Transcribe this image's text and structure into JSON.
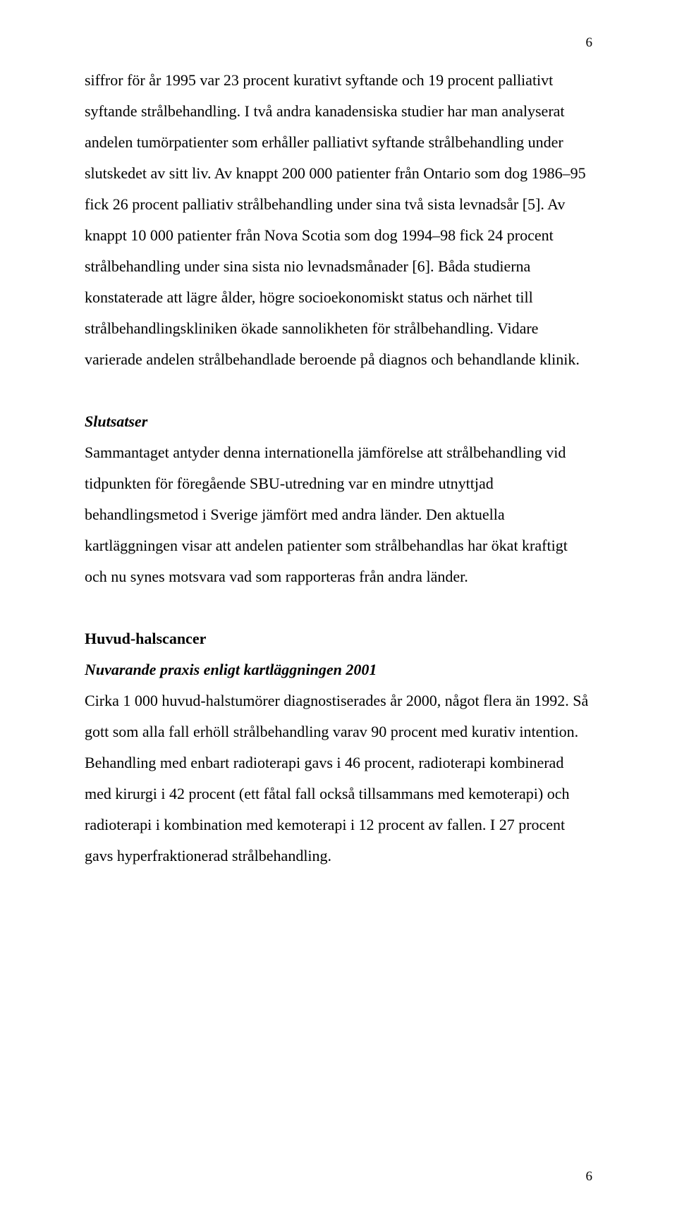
{
  "page_number_top": "6",
  "page_number_bottom": "6",
  "typography": {
    "font_family": "Times New Roman",
    "body_fontsize_pt": 16,
    "line_height": 2.0,
    "text_color": "#000000",
    "background_color": "#ffffff"
  },
  "paragraph1": "siffror för år 1995 var 23 procent kurativt syftande och 19 procent palliativt syftande strålbehandling. I två andra kanadensiska studier har man analyserat  andelen tumörpatienter som erhåller palliativt syftande strålbehandling under slutskedet av sitt liv. Av knappt 200 000 patienter från Ontario som dog 1986–95 fick 26 procent palliativ strålbehandling under sina två sista levnadsår [5]. Av knappt 10 000 patienter från Nova Scotia som dog 1994–98 fick 24 procent strålbehandling under sina sista nio levnadsmånader [6]. Båda studierna konstaterade att lägre ålder, högre socioekonomiskt status och närhet till strålbehandlingskliniken ökade sannolikheten för strålbehandling. Vidare varierade andelen strålbehandlade beroende på diagnos och behandlande klinik.",
  "slutsatser_heading": "Slutsatser",
  "paragraph2": "Sammantaget antyder denna internationella jämförelse att strålbehandling vid tidpunkten för föregående SBU-utredning var en mindre utnyttjad behandlingsmetod i Sverige jämfört med andra länder. Den aktuella kartläggningen visar att andelen patienter som strålbehandlas har ökat kraftigt och nu synes motsvara vad som rapporteras från andra länder.",
  "huvud_heading": "Huvud-halscancer",
  "huvud_subheading": "Nuvarande praxis enligt kartläggningen 2001",
  "paragraph3": "Cirka 1 000 huvud-halstumörer diagnostiserades år 2000, något flera än 1992. Så gott som alla fall erhöll strålbehandling varav 90 procent med kurativ intention. Behandling med enbart radioterapi gavs i 46 procent, radioterapi kombinerad med kirurgi i 42 procent (ett fåtal fall också tillsammans med kemoterapi) och radioterapi i kombination med kemoterapi i 12 procent av fallen. I 27 procent gavs hyperfraktionerad strålbehandling."
}
